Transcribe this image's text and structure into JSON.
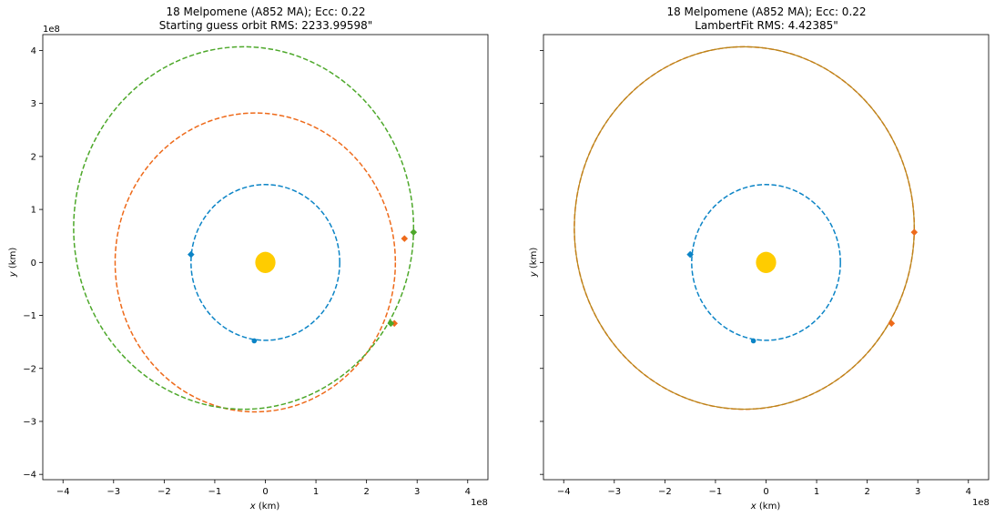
{
  "chart_data": [
    {
      "type": "scatter",
      "title": "18 Melpomene (A852 MA); Ecc: 0.22",
      "subtitle": "Starting guess orbit RMS: 2233.99598\"",
      "xlabel": "x (km)",
      "ylabel": "y (km)",
      "axis_scale_label_x": "1e8",
      "axis_scale_label_y": "1e8",
      "xlim": [
        -4.4,
        4.4
      ],
      "ylim": [
        -4.1,
        4.3
      ],
      "xticks": [
        "−4",
        "−3",
        "−2",
        "−1",
        "0",
        "1",
        "2",
        "3",
        "4"
      ],
      "yticks": [
        "−4",
        "−3",
        "−2",
        "−1",
        "0",
        "1",
        "2",
        "3",
        "4"
      ],
      "show_yticklabels": true,
      "grid": false,
      "sun": {
        "x": 0,
        "y": 0,
        "color": "#ffcc00"
      },
      "orbits": [
        {
          "cx": 0.0,
          "cy": 0.0,
          "rx": 1.47,
          "ry": 1.47,
          "color": "#0b84c6",
          "style": "dashed"
        },
        {
          "cx": -0.2,
          "cy": 0.0,
          "rx": 2.77,
          "ry": 2.82,
          "color": "#ee6a1a",
          "style": "dashed"
        },
        {
          "cx": -0.43,
          "cy": 0.65,
          "rx": 3.36,
          "ry": 3.42,
          "color": "#4da82a",
          "style": "dashed"
        }
      ],
      "points": [
        {
          "x": -1.47,
          "y": 0.15,
          "color": "#0b84c6",
          "marker": "diamond"
        },
        {
          "x": -0.22,
          "y": -1.48,
          "color": "#0b84c6",
          "marker": "dot"
        },
        {
          "x": 2.75,
          "y": 0.45,
          "color": "#ee6a1a",
          "marker": "diamond"
        },
        {
          "x": 2.55,
          "y": -1.15,
          "color": "#ee6a1a",
          "marker": "diamond"
        },
        {
          "x": 2.93,
          "y": 0.57,
          "color": "#4da82a",
          "marker": "diamond"
        },
        {
          "x": 2.48,
          "y": -1.15,
          "color": "#4da82a",
          "marker": "diamond"
        }
      ]
    },
    {
      "type": "scatter",
      "title": "18 Melpomene (A852 MA); Ecc: 0.22",
      "subtitle": "LambertFit RMS: 4.42385\"",
      "xlabel": "x (km)",
      "ylabel": "y (km)",
      "axis_scale_label_x": "1e8",
      "axis_scale_label_y": "",
      "xlim": [
        -4.4,
        4.4
      ],
      "ylim": [
        -4.1,
        4.3
      ],
      "xticks": [
        "−4",
        "−3",
        "−2",
        "−1",
        "0",
        "1",
        "2",
        "3",
        "4"
      ],
      "yticks": [
        "",
        "",
        "",
        "",
        "",
        "",
        "",
        "",
        ""
      ],
      "show_yticklabels": false,
      "grid": false,
      "sun": {
        "x": 0,
        "y": 0,
        "color": "#ffcc00"
      },
      "orbits": [
        {
          "cx": 0.0,
          "cy": 0.0,
          "rx": 1.47,
          "ry": 1.47,
          "color": "#0b84c6",
          "style": "dashed"
        },
        {
          "cx": -0.43,
          "cy": 0.65,
          "rx": 3.36,
          "ry": 3.42,
          "color": "#ee6a1a",
          "style": "dashed"
        },
        {
          "cx": -0.43,
          "cy": 0.65,
          "rx": 3.36,
          "ry": 3.42,
          "color": "#b8871a",
          "style": "solid"
        }
      ],
      "points": [
        {
          "x": -1.5,
          "y": 0.15,
          "color": "#0b84c6",
          "marker": "diamond"
        },
        {
          "x": -0.25,
          "y": -1.48,
          "color": "#0b84c6",
          "marker": "dot"
        },
        {
          "x": 2.93,
          "y": 0.57,
          "color": "#ee6a1a",
          "marker": "diamond"
        },
        {
          "x": 2.48,
          "y": -1.15,
          "color": "#ee6a1a",
          "marker": "diamond"
        }
      ]
    }
  ]
}
